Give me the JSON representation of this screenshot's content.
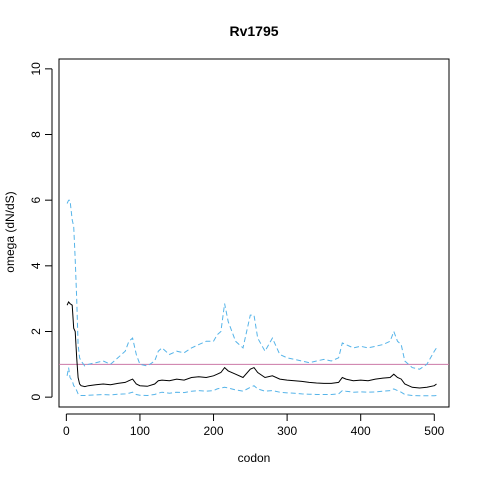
{
  "chart_data": {
    "type": "line",
    "title": "Rv1795",
    "xlabel": "codon",
    "ylabel": "omega (dN/dS)",
    "xlim": [
      -10,
      520
    ],
    "ylim": [
      -0.3,
      10.3
    ],
    "xticks": [
      0,
      100,
      200,
      300,
      400,
      500
    ],
    "xtick_labels": [
      "0",
      "100",
      "200",
      "300",
      "400",
      "500"
    ],
    "yticks": [
      0,
      2,
      4,
      6,
      8,
      10
    ],
    "ytick_labels": [
      "0",
      "2",
      "4",
      "6",
      "8",
      "10"
    ],
    "grid": false,
    "reference_line": {
      "y": 1,
      "color": "#cc79a7"
    },
    "colors": {
      "estimate": "#000000",
      "bounds": "#56b4e9"
    },
    "series": [
      {
        "style": "solid",
        "x": [
          1,
          3,
          5,
          8,
          10,
          12,
          14,
          16,
          18,
          20,
          25,
          30,
          40,
          50,
          60,
          70,
          80,
          85,
          90,
          95,
          100,
          110,
          120,
          125,
          130,
          140,
          150,
          160,
          170,
          180,
          190,
          200,
          205,
          210,
          215,
          220,
          230,
          240,
          250,
          255,
          260,
          270,
          280,
          290,
          300,
          310,
          320,
          330,
          340,
          350,
          360,
          370,
          375,
          380,
          390,
          400,
          410,
          420,
          430,
          440,
          445,
          450,
          455,
          460,
          470,
          480,
          490,
          500,
          503
        ],
        "y": [
          2.8,
          2.9,
          2.85,
          2.8,
          2.1,
          2.0,
          1.2,
          0.6,
          0.4,
          0.35,
          0.32,
          0.35,
          0.38,
          0.4,
          0.38,
          0.42,
          0.45,
          0.5,
          0.55,
          0.4,
          0.35,
          0.33,
          0.4,
          0.5,
          0.52,
          0.5,
          0.55,
          0.52,
          0.6,
          0.62,
          0.6,
          0.65,
          0.7,
          0.75,
          0.9,
          0.8,
          0.7,
          0.6,
          0.85,
          0.9,
          0.75,
          0.6,
          0.65,
          0.55,
          0.52,
          0.5,
          0.48,
          0.45,
          0.43,
          0.42,
          0.42,
          0.45,
          0.6,
          0.55,
          0.5,
          0.52,
          0.5,
          0.55,
          0.58,
          0.6,
          0.7,
          0.6,
          0.55,
          0.4,
          0.3,
          0.28,
          0.3,
          0.35,
          0.4
        ]
      },
      {
        "style": "dashed",
        "x": [
          1,
          3,
          5,
          8,
          10,
          12,
          14,
          16,
          18,
          20,
          25,
          30,
          40,
          50,
          60,
          70,
          80,
          85,
          90,
          95,
          100,
          110,
          120,
          125,
          130,
          140,
          150,
          160,
          170,
          180,
          190,
          200,
          205,
          210,
          215,
          220,
          230,
          240,
          250,
          255,
          260,
          270,
          280,
          290,
          300,
          310,
          320,
          330,
          340,
          350,
          360,
          370,
          375,
          380,
          390,
          400,
          410,
          420,
          430,
          440,
          445,
          450,
          455,
          460,
          470,
          480,
          490,
          500,
          503
        ],
        "y": [
          5.9,
          6.0,
          6.0,
          5.4,
          5.2,
          4.2,
          3.0,
          1.6,
          1.2,
          1.1,
          0.95,
          1.0,
          1.05,
          1.1,
          1.0,
          1.2,
          1.4,
          1.7,
          1.8,
          1.3,
          1.0,
          0.95,
          1.1,
          1.4,
          1.5,
          1.3,
          1.4,
          1.35,
          1.5,
          1.6,
          1.7,
          1.7,
          1.9,
          2.0,
          2.85,
          2.3,
          1.7,
          1.5,
          2.5,
          2.5,
          1.8,
          1.4,
          1.8,
          1.3,
          1.2,
          1.15,
          1.1,
          1.05,
          1.1,
          1.15,
          1.1,
          1.2,
          1.65,
          1.6,
          1.5,
          1.55,
          1.5,
          1.55,
          1.6,
          1.7,
          2.0,
          1.7,
          1.6,
          1.1,
          0.9,
          0.85,
          1.0,
          1.4,
          1.5
        ]
      },
      {
        "style": "dashed",
        "x": [
          1,
          3,
          5,
          8,
          10,
          12,
          14,
          16,
          18,
          20,
          25,
          30,
          40,
          50,
          60,
          70,
          80,
          85,
          90,
          95,
          100,
          110,
          120,
          125,
          130,
          140,
          150,
          160,
          170,
          180,
          190,
          200,
          205,
          210,
          215,
          220,
          230,
          240,
          250,
          255,
          260,
          270,
          280,
          290,
          300,
          310,
          320,
          330,
          340,
          350,
          360,
          370,
          375,
          380,
          390,
          400,
          410,
          420,
          430,
          440,
          445,
          450,
          455,
          460,
          470,
          480,
          490,
          500,
          503
        ],
        "y": [
          0.65,
          0.9,
          0.6,
          0.5,
          0.35,
          0.3,
          0.2,
          0.1,
          0.05,
          0.05,
          0.05,
          0.06,
          0.07,
          0.08,
          0.07,
          0.09,
          0.1,
          0.12,
          0.15,
          0.08,
          0.06,
          0.05,
          0.08,
          0.12,
          0.15,
          0.12,
          0.15,
          0.14,
          0.18,
          0.2,
          0.18,
          0.2,
          0.25,
          0.28,
          0.3,
          0.28,
          0.22,
          0.18,
          0.3,
          0.35,
          0.25,
          0.18,
          0.2,
          0.15,
          0.13,
          0.12,
          0.1,
          0.09,
          0.08,
          0.08,
          0.08,
          0.1,
          0.2,
          0.18,
          0.15,
          0.16,
          0.15,
          0.16,
          0.18,
          0.2,
          0.25,
          0.2,
          0.15,
          0.08,
          0.05,
          0.04,
          0.04,
          0.04,
          0.05
        ]
      }
    ]
  }
}
